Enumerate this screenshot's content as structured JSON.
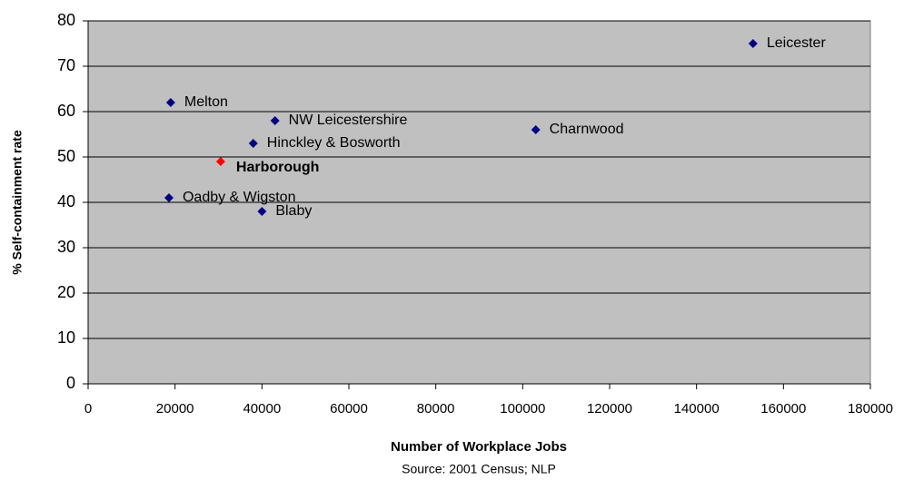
{
  "chart_data": {
    "type": "scatter",
    "xlabel": "Number of Workplace Jobs",
    "ylabel": "% Self-containment rate",
    "note": "Source: 2001 Census; NLP",
    "points": [
      {
        "label": "Leicester",
        "x": 153000,
        "y": 75,
        "color": "#000080"
      },
      {
        "label": "Melton",
        "x": 19000,
        "y": 62,
        "color": "#000080"
      },
      {
        "label": "NW Leicestershire",
        "x": 43000,
        "y": 58,
        "color": "#000080"
      },
      {
        "label": "Charnwood",
        "x": 103000,
        "y": 56,
        "color": "#000080"
      },
      {
        "label": "Hinckley & Bosworth",
        "x": 38000,
        "y": 53,
        "color": "#000080"
      },
      {
        "label": "Harborough",
        "x": 30500,
        "y": 49,
        "color": "#ff0000",
        "bold": true
      },
      {
        "label": "Oadby & Wigston",
        "x": 18600,
        "y": 41,
        "color": "#000080"
      },
      {
        "label": "Blaby",
        "x": 40000,
        "y": 38,
        "color": "#000080"
      }
    ],
    "xlim": [
      0,
      180000
    ],
    "xticks": [
      0,
      20000,
      40000,
      60000,
      80000,
      100000,
      120000,
      140000,
      160000,
      180000
    ],
    "ylim": [
      0,
      80
    ],
    "yticks": [
      0,
      10,
      20,
      30,
      40,
      50,
      60,
      70,
      80
    ],
    "grid": true,
    "plot_background": "#c0c0c0"
  }
}
